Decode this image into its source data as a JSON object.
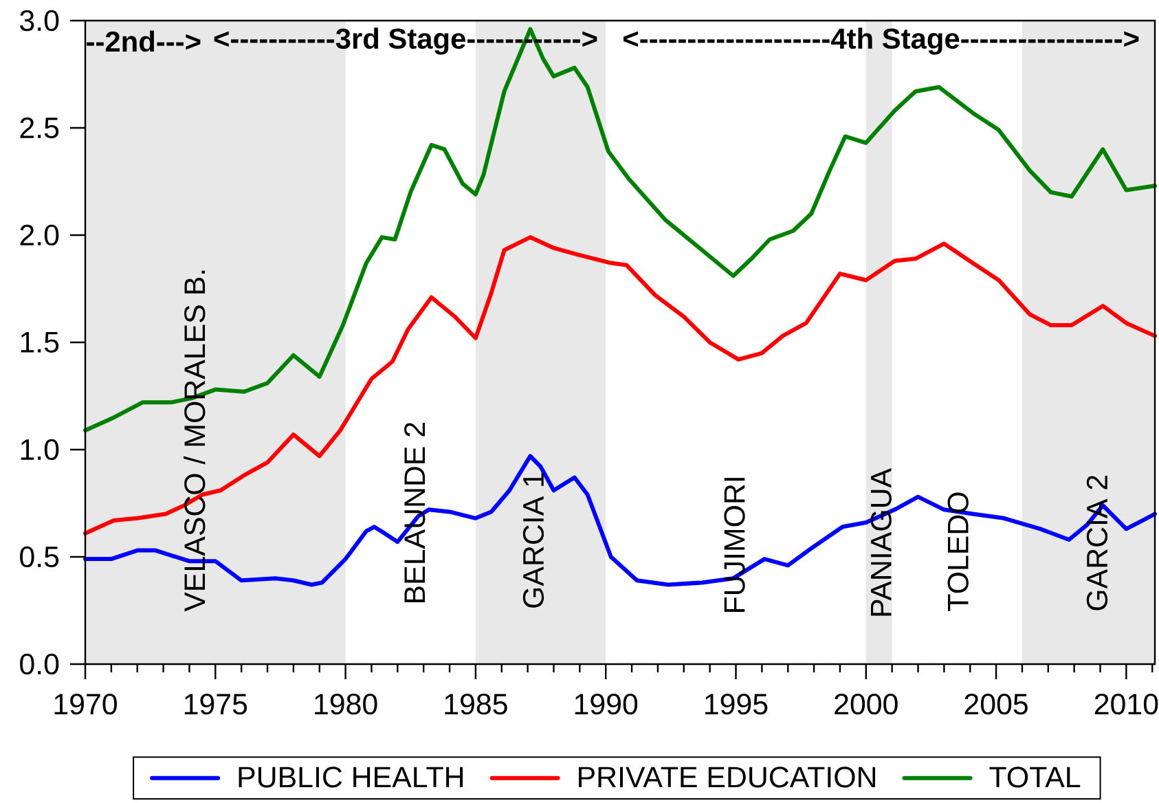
{
  "chart_data": {
    "type": "line",
    "series": [
      {
        "name": "PUBLIC HEALTH",
        "color": "#0000ff",
        "x": [
          1970.0,
          1971.0,
          1972.0,
          1972.7,
          1974.0,
          1975.0,
          1976.0,
          1977.3,
          1978.0,
          1978.7,
          1979.1,
          1980.0,
          1980.8,
          1981.1,
          1981.5,
          1982.0,
          1982.8,
          1983.2,
          1984.0,
          1985.0,
          1985.6,
          1986.3,
          1987.1,
          1987.5,
          1988.0,
          1988.8,
          1989.3,
          1990.2,
          1991.2,
          1992.4,
          1993.7,
          1994.9,
          1996.1,
          1997.0,
          1997.9,
          1999.1,
          2000.0,
          2001.1,
          2002.0,
          2003.0,
          2004.1,
          2005.3,
          2006.7,
          2007.8,
          2008.5,
          2009.1,
          2010.0,
          2011.1
        ],
        "values": [
          0.49,
          0.49,
          0.53,
          0.53,
          0.48,
          0.48,
          0.39,
          0.4,
          0.39,
          0.37,
          0.38,
          0.49,
          0.62,
          0.64,
          0.61,
          0.57,
          0.69,
          0.72,
          0.71,
          0.68,
          0.71,
          0.81,
          0.97,
          0.92,
          0.81,
          0.87,
          0.79,
          0.5,
          0.39,
          0.37,
          0.38,
          0.4,
          0.49,
          0.46,
          0.54,
          0.64,
          0.66,
          0.72,
          0.78,
          0.72,
          0.7,
          0.68,
          0.63,
          0.58,
          0.65,
          0.74,
          0.63,
          0.7
        ]
      },
      {
        "name": "PRIVATE EDUCATION",
        "color": "#ff0000",
        "x": [
          1970.0,
          1971.1,
          1972.0,
          1973.1,
          1973.8,
          1974.5,
          1975.2,
          1976.1,
          1977.0,
          1978.0,
          1979.0,
          1979.8,
          1981.0,
          1981.8,
          1982.4,
          1983.3,
          1984.2,
          1985.0,
          1985.6,
          1986.1,
          1987.1,
          1988.0,
          1988.9,
          1990.2,
          1990.8,
          1991.9,
          1993.0,
          1994.0,
          1995.1,
          1996.0,
          1996.8,
          1997.7,
          1999.0,
          2000.0,
          2001.1,
          2001.9,
          2003.0,
          2004.1,
          2005.1,
          2006.3,
          2007.1,
          2007.9,
          2009.1,
          2010.0,
          2011.1
        ],
        "values": [
          0.61,
          0.67,
          0.68,
          0.7,
          0.74,
          0.79,
          0.81,
          0.88,
          0.94,
          1.07,
          0.97,
          1.09,
          1.33,
          1.41,
          1.56,
          1.71,
          1.62,
          1.52,
          1.73,
          1.93,
          1.99,
          1.94,
          1.91,
          1.87,
          1.86,
          1.72,
          1.62,
          1.5,
          1.42,
          1.45,
          1.53,
          1.59,
          1.82,
          1.79,
          1.88,
          1.89,
          1.96,
          1.87,
          1.79,
          1.63,
          1.58,
          1.58,
          1.67,
          1.59,
          1.53
        ]
      },
      {
        "name": "TOTAL",
        "color": "#008000",
        "x": [
          1970.0,
          1971.1,
          1972.2,
          1973.3,
          1974.1,
          1975.0,
          1976.1,
          1977.0,
          1978.0,
          1979.0,
          1979.9,
          1980.8,
          1981.4,
          1981.9,
          1982.5,
          1983.3,
          1983.8,
          1984.5,
          1985.0,
          1985.3,
          1986.1,
          1987.1,
          1987.6,
          1988.0,
          1988.8,
          1989.3,
          1990.1,
          1990.9,
          1992.3,
          1993.7,
          1994.9,
          1995.6,
          1996.3,
          1997.2,
          1997.9,
          1998.6,
          1999.2,
          2000.0,
          2001.1,
          2001.9,
          2002.8,
          2004.1,
          2005.1,
          2006.3,
          2007.1,
          2007.9,
          2009.1,
          2010.0,
          2011.1
        ],
        "values": [
          1.09,
          1.15,
          1.22,
          1.22,
          1.24,
          1.28,
          1.27,
          1.31,
          1.44,
          1.34,
          1.58,
          1.87,
          1.99,
          1.98,
          2.2,
          2.42,
          2.4,
          2.24,
          2.19,
          2.28,
          2.67,
          2.96,
          2.82,
          2.74,
          2.78,
          2.69,
          2.39,
          2.26,
          2.07,
          1.93,
          1.81,
          1.89,
          1.98,
          2.02,
          2.1,
          2.3,
          2.46,
          2.43,
          2.58,
          2.67,
          2.69,
          2.57,
          2.49,
          2.3,
          2.2,
          2.18,
          2.4,
          2.21,
          2.23
        ]
      }
    ],
    "xlim": [
      1970,
      2011.1
    ],
    "xticks": [
      1970,
      {
        "value": 1971,
        "label": null
      },
      {
        "value": 1972,
        "label": null
      },
      {
        "value": 1973,
        "label": null
      },
      {
        "value": 1974,
        "label": null
      },
      1975,
      {
        "value": 1976,
        "label": null
      },
      {
        "value": 1977,
        "label": null
      },
      {
        "value": 1978,
        "label": null
      },
      {
        "value": 1979,
        "label": null
      },
      1980,
      {
        "value": 1981,
        "label": null
      },
      {
        "value": 1982,
        "label": null
      },
      {
        "value": 1983,
        "label": null
      },
      {
        "value": 1984,
        "label": null
      },
      1985,
      {
        "value": 1986,
        "label": null
      },
      {
        "value": 1987,
        "label": null
      },
      {
        "value": 1988,
        "label": null
      },
      {
        "value": 1989,
        "label": null
      },
      1990,
      {
        "value": 1991,
        "label": null
      },
      {
        "value": 1992,
        "label": null
      },
      {
        "value": 1993,
        "label": null
      },
      {
        "value": 1994,
        "label": null
      },
      1995,
      {
        "value": 1996,
        "label": null
      },
      {
        "value": 1997,
        "label": null
      },
      {
        "value": 1998,
        "label": null
      },
      {
        "value": 1999,
        "label": null
      },
      2000,
      {
        "value": 2001,
        "label": null
      },
      {
        "value": 2002,
        "label": null
      },
      {
        "value": 2003,
        "label": null
      },
      {
        "value": 2004,
        "label": null
      },
      2005,
      {
        "value": 2006,
        "label": null
      },
      {
        "value": 2007,
        "label": null
      },
      {
        "value": 2008,
        "label": null
      },
      {
        "value": 2009,
        "label": null
      },
      2010,
      {
        "value": 2011,
        "label": null
      }
    ],
    "ylim": [
      0,
      3
    ],
    "yticks": [
      {
        "value": 0,
        "label": "0.0"
      },
      0.5,
      {
        "value": 1,
        "label": "1.0"
      },
      1.5,
      {
        "value": 2,
        "label": "2.0"
      },
      2.5,
      {
        "value": 3,
        "label": "3.0"
      }
    ],
    "bands": [
      {
        "axis": "x",
        "from": 1970,
        "to": 1980,
        "color": "#e8e8e8"
      },
      {
        "axis": "x",
        "from": 1985,
        "to": 1990,
        "color": "#e8e8e8"
      },
      {
        "axis": "x",
        "from": 2000,
        "to": 2001,
        "color": "#e8e8e8"
      },
      {
        "axis": "x",
        "from": 2006,
        "to": 2011.1,
        "color": "#e8e8e8"
      }
    ],
    "annotations": [
      "--2nd--->",
      "<-----------3rd Stage------------>",
      "<--------------------4th Stage----------------->",
      "VELASCO / MORALES B.",
      "BELAUNDE 2",
      "GARCIA 1",
      "FUJIMORI",
      "PANIAGUA",
      "TOLEDO",
      "GARCIA 2"
    ],
    "legend": "bottom",
    "line_style": "solid"
  }
}
